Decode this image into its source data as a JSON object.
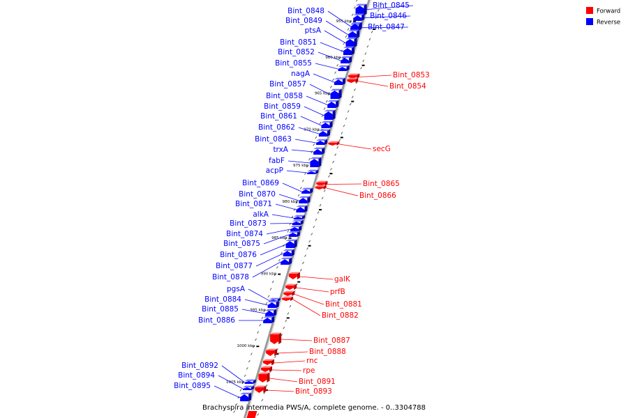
{
  "legend": [
    {
      "label": "Forward",
      "color": "#ff0000"
    },
    {
      "label": "Reverse",
      "color": "#0000ff"
    }
  ],
  "caption": "Brachyspira intermedia PWS/A, complete genome. - 0..3304788",
  "colors": {
    "forward": "#ff0000",
    "reverse": "#0000ff",
    "backbone": "#9a9a9a"
  },
  "kbp_ticks": [
    {
      "kbp": 955,
      "label": "955 kbp"
    },
    {
      "kbp": 960,
      "label": "960 kbp"
    },
    {
      "kbp": 965,
      "label": "965 kbp"
    },
    {
      "kbp": 970,
      "label": "970 kbp"
    },
    {
      "kbp": 975,
      "label": "975 kbp"
    },
    {
      "kbp": 980,
      "label": "980 kbp"
    },
    {
      "kbp": 985,
      "label": "985 kbp"
    },
    {
      "kbp": 990,
      "label": "990 kbp"
    },
    {
      "kbp": 995,
      "label": "995 kbp"
    },
    {
      "kbp": 1000,
      "label": "1000 kbp"
    },
    {
      "kbp": 1005,
      "label": "1005 kbp"
    }
  ],
  "genes": [
    {
      "name": "Bint_0845",
      "strand": "reverse"
    },
    {
      "name": "Bint_0846",
      "strand": "reverse"
    },
    {
      "name": "Bint_0847",
      "strand": "reverse"
    },
    {
      "name": "Bint_0848",
      "strand": "reverse"
    },
    {
      "name": "Bint_0849",
      "strand": "reverse"
    },
    {
      "name": "ptsA",
      "strand": "reverse"
    },
    {
      "name": "Bint_0851",
      "strand": "reverse"
    },
    {
      "name": "Bint_0852",
      "strand": "reverse"
    },
    {
      "name": "Bint_0855",
      "strand": "reverse"
    },
    {
      "name": "Bint_0853",
      "strand": "forward"
    },
    {
      "name": "Bint_0854",
      "strand": "forward"
    },
    {
      "name": "nagA",
      "strand": "reverse"
    },
    {
      "name": "Bint_0857",
      "strand": "reverse"
    },
    {
      "name": "Bint_0858",
      "strand": "reverse"
    },
    {
      "name": "Bint_0859",
      "strand": "reverse"
    },
    {
      "name": "Bint_0861",
      "strand": "reverse"
    },
    {
      "name": "Bint_0862",
      "strand": "reverse"
    },
    {
      "name": "Bint_0863",
      "strand": "reverse"
    },
    {
      "name": "secG",
      "strand": "forward"
    },
    {
      "name": "trxA",
      "strand": "reverse"
    },
    {
      "name": "fabF",
      "strand": "reverse"
    },
    {
      "name": "acpP",
      "strand": "reverse"
    },
    {
      "name": "Bint_0865",
      "strand": "forward"
    },
    {
      "name": "Bint_0866",
      "strand": "forward"
    },
    {
      "name": "Bint_0869",
      "strand": "reverse"
    },
    {
      "name": "Bint_0870",
      "strand": "reverse"
    },
    {
      "name": "Bint_0871",
      "strand": "reverse"
    },
    {
      "name": "alkA",
      "strand": "reverse"
    },
    {
      "name": "Bint_0873",
      "strand": "reverse"
    },
    {
      "name": "Bint_0874",
      "strand": "reverse"
    },
    {
      "name": "Bint_0875",
      "strand": "reverse"
    },
    {
      "name": "Bint_0876",
      "strand": "reverse"
    },
    {
      "name": "Bint_0877",
      "strand": "reverse"
    },
    {
      "name": "Bint_0878",
      "strand": "reverse"
    },
    {
      "name": "galK",
      "strand": "forward"
    },
    {
      "name": "prfB",
      "strand": "forward"
    },
    {
      "name": "pgsA",
      "strand": "reverse"
    },
    {
      "name": "Bint_0881",
      "strand": "forward"
    },
    {
      "name": "Bint_0882",
      "strand": "forward"
    },
    {
      "name": "Bint_0884",
      "strand": "reverse"
    },
    {
      "name": "Bint_0885",
      "strand": "reverse"
    },
    {
      "name": "Bint_0886",
      "strand": "reverse"
    },
    {
      "name": "Bint_0887",
      "strand": "forward"
    },
    {
      "name": "Bint_0888",
      "strand": "forward"
    },
    {
      "name": "rnc",
      "strand": "forward"
    },
    {
      "name": "rpe",
      "strand": "forward"
    },
    {
      "name": "Bint_0891",
      "strand": "forward"
    },
    {
      "name": "Bint_0892",
      "strand": "reverse"
    },
    {
      "name": "Bint_0893",
      "strand": "forward"
    },
    {
      "name": "Bint_0894",
      "strand": "reverse"
    },
    {
      "name": "Bint_0895",
      "strand": "reverse"
    }
  ]
}
